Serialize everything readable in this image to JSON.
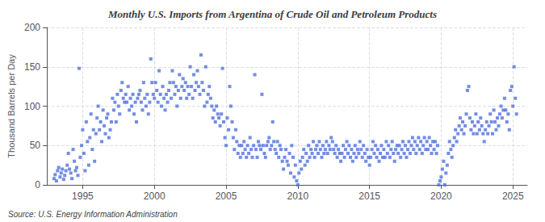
{
  "chart_data": {
    "type": "scatter",
    "title": "Monthly U.S. Imports from Argentina of Crude Oil and Petroleum Products",
    "ylabel": "Thousand Barrels per Day",
    "annotation": "Source: U.S. Energy Information Administration",
    "marker": "square",
    "grid": true,
    "xlim": [
      1992.5,
      2026.0
    ],
    "xticks": [
      1995,
      2000,
      2005,
      2010,
      2015,
      2020,
      2025
    ],
    "ylim": [
      0,
      200
    ],
    "yticks": [
      0,
      50,
      100,
      150,
      200
    ],
    "x": [
      1993.0,
      1993.08,
      1993.17,
      1993.25,
      1993.33,
      1993.42,
      1993.5,
      1993.58,
      1993.67,
      1993.75,
      1993.83,
      1993.92,
      1994.0,
      1994.08,
      1994.17,
      1994.25,
      1994.33,
      1994.42,
      1994.5,
      1994.58,
      1994.67,
      1994.75,
      1994.83,
      1994.92,
      1995.0,
      1995.08,
      1995.17,
      1995.25,
      1995.33,
      1995.42,
      1995.5,
      1995.58,
      1995.67,
      1995.75,
      1995.83,
      1995.92,
      1996.0,
      1996.08,
      1996.17,
      1996.25,
      1996.33,
      1996.42,
      1996.5,
      1996.58,
      1996.67,
      1996.75,
      1996.83,
      1996.92,
      1997.0,
      1997.08,
      1997.17,
      1997.25,
      1997.33,
      1997.42,
      1997.5,
      1997.58,
      1997.67,
      1997.75,
      1997.83,
      1997.92,
      1998.0,
      1998.08,
      1998.17,
      1998.25,
      1998.33,
      1998.42,
      1998.5,
      1998.58,
      1998.67,
      1998.75,
      1998.83,
      1998.92,
      1999.0,
      1999.08,
      1999.17,
      1999.25,
      1999.33,
      1999.42,
      1999.5,
      1999.58,
      1999.67,
      1999.75,
      1999.83,
      1999.92,
      2000.0,
      2000.08,
      2000.17,
      2000.25,
      2000.33,
      2000.42,
      2000.5,
      2000.58,
      2000.67,
      2000.75,
      2000.83,
      2000.92,
      2001.0,
      2001.08,
      2001.17,
      2001.25,
      2001.33,
      2001.42,
      2001.5,
      2001.58,
      2001.67,
      2001.75,
      2001.83,
      2001.92,
      2002.0,
      2002.08,
      2002.17,
      2002.25,
      2002.33,
      2002.42,
      2002.5,
      2002.58,
      2002.67,
      2002.75,
      2002.83,
      2002.92,
      2003.0,
      2003.08,
      2003.17,
      2003.25,
      2003.33,
      2003.42,
      2003.5,
      2003.58,
      2003.67,
      2003.75,
      2003.83,
      2003.92,
      2004.0,
      2004.08,
      2004.17,
      2004.25,
      2004.33,
      2004.42,
      2004.5,
      2004.58,
      2004.67,
      2004.75,
      2004.83,
      2004.92,
      2005.0,
      2005.08,
      2005.17,
      2005.25,
      2005.33,
      2005.42,
      2005.5,
      2005.58,
      2005.67,
      2005.75,
      2005.83,
      2005.92,
      2006.0,
      2006.08,
      2006.17,
      2006.25,
      2006.33,
      2006.42,
      2006.5,
      2006.58,
      2006.67,
      2006.75,
      2006.83,
      2006.92,
      2007.0,
      2007.08,
      2007.17,
      2007.25,
      2007.33,
      2007.42,
      2007.5,
      2007.58,
      2007.67,
      2007.75,
      2007.83,
      2007.92,
      2008.0,
      2008.08,
      2008.17,
      2008.25,
      2008.33,
      2008.42,
      2008.5,
      2008.58,
      2008.67,
      2008.75,
      2008.83,
      2008.92,
      2009.0,
      2009.08,
      2009.17,
      2009.25,
      2009.33,
      2009.42,
      2009.5,
      2009.58,
      2009.67,
      2009.75,
      2009.83,
      2009.92,
      2010.0,
      2010.08,
      2010.17,
      2010.25,
      2010.33,
      2010.42,
      2010.5,
      2010.58,
      2010.67,
      2010.75,
      2010.83,
      2010.92,
      2011.0,
      2011.08,
      2011.17,
      2011.25,
      2011.33,
      2011.42,
      2011.5,
      2011.58,
      2011.67,
      2011.75,
      2011.83,
      2011.92,
      2012.0,
      2012.08,
      2012.17,
      2012.25,
      2012.33,
      2012.42,
      2012.5,
      2012.58,
      2012.67,
      2012.75,
      2012.83,
      2012.92,
      2013.0,
      2013.08,
      2013.17,
      2013.25,
      2013.33,
      2013.42,
      2013.5,
      2013.58,
      2013.67,
      2013.75,
      2013.83,
      2013.92,
      2014.0,
      2014.08,
      2014.17,
      2014.25,
      2014.33,
      2014.42,
      2014.5,
      2014.58,
      2014.67,
      2014.75,
      2014.83,
      2014.92,
      2015.0,
      2015.08,
      2015.17,
      2015.25,
      2015.33,
      2015.42,
      2015.5,
      2015.58,
      2015.67,
      2015.75,
      2015.83,
      2015.92,
      2016.0,
      2016.08,
      2016.17,
      2016.25,
      2016.33,
      2016.42,
      2016.5,
      2016.58,
      2016.67,
      2016.75,
      2016.83,
      2016.92,
      2017.0,
      2017.08,
      2017.17,
      2017.25,
      2017.33,
      2017.42,
      2017.5,
      2017.58,
      2017.67,
      2017.75,
      2017.83,
      2017.92,
      2018.0,
      2018.08,
      2018.17,
      2018.25,
      2018.33,
      2018.42,
      2018.5,
      2018.58,
      2018.67,
      2018.75,
      2018.83,
      2018.92,
      2019.0,
      2019.08,
      2019.17,
      2019.25,
      2019.33,
      2019.42,
      2019.5,
      2019.58,
      2019.67,
      2019.75,
      2019.83,
      2019.92,
      2020.0,
      2020.08,
      2020.17,
      2020.25,
      2020.33,
      2020.42,
      2020.5,
      2020.58,
      2020.67,
      2020.75,
      2020.83,
      2020.92,
      2021.0,
      2021.08,
      2021.17,
      2021.25,
      2021.33,
      2021.42,
      2021.5,
      2021.58,
      2021.67,
      2021.75,
      2021.83,
      2021.92,
      2022.0,
      2022.08,
      2022.17,
      2022.25,
      2022.33,
      2022.42,
      2022.5,
      2022.58,
      2022.67,
      2022.75,
      2022.83,
      2022.92,
      2023.0,
      2023.08,
      2023.17,
      2023.25,
      2023.33,
      2023.42,
      2023.5,
      2023.58,
      2023.67,
      2023.75,
      2023.83,
      2023.92,
      2024.0,
      2024.08,
      2024.17,
      2024.25,
      2024.33,
      2024.42,
      2024.5,
      2024.58,
      2024.67,
      2024.75,
      2024.83,
      2024.92,
      2025.0,
      2025.08,
      2025.17,
      2025.25
    ],
    "values": [
      8,
      13,
      5,
      18,
      22,
      10,
      15,
      20,
      7,
      12,
      18,
      25,
      40,
      20,
      15,
      8,
      45,
      30,
      18,
      22,
      12,
      148,
      35,
      50,
      70,
      40,
      18,
      80,
      55,
      25,
      60,
      90,
      45,
      70,
      30,
      65,
      85,
      100,
      70,
      80,
      55,
      95,
      75,
      65,
      85,
      90,
      60,
      70,
      80,
      110,
      95,
      105,
      80,
      115,
      100,
      90,
      120,
      130,
      110,
      105,
      115,
      105,
      125,
      95,
      110,
      100,
      115,
      90,
      105,
      80,
      110,
      115,
      120,
      105,
      95,
      130,
      110,
      100,
      115,
      90,
      105,
      160,
      130,
      115,
      110,
      130,
      120,
      105,
      145,
      115,
      100,
      125,
      110,
      95,
      115,
      105,
      120,
      130,
      110,
      145,
      130,
      115,
      125,
      100,
      120,
      140,
      110,
      125,
      135,
      120,
      130,
      110,
      125,
      115,
      150,
      125,
      110,
      140,
      120,
      130,
      145,
      125,
      115,
      165,
      130,
      120,
      100,
      150,
      105,
      115,
      125,
      110,
      100,
      85,
      95,
      80,
      100,
      90,
      85,
      75,
      90,
      148,
      80,
      60,
      50,
      85,
      70,
      125,
      100,
      80,
      60,
      45,
      70,
      55,
      40,
      50,
      35,
      50,
      40,
      55,
      45,
      35,
      50,
      40,
      60,
      45,
      35,
      50,
      140,
      45,
      35,
      55,
      50,
      45,
      115,
      50,
      40,
      35,
      50,
      55,
      60,
      45,
      50,
      80,
      55,
      45,
      40,
      55,
      35,
      50,
      45,
      30,
      20,
      35,
      45,
      30,
      25,
      40,
      15,
      50,
      35,
      10,
      25,
      5,
      0,
      15,
      30,
      20,
      35,
      45,
      25,
      40,
      30,
      50,
      35,
      45,
      40,
      55,
      35,
      45,
      50,
      40,
      55,
      45,
      35,
      50,
      40,
      45,
      55,
      40,
      50,
      45,
      60,
      55,
      45,
      40,
      50,
      35,
      45,
      40,
      30,
      40,
      50,
      35,
      45,
      55,
      40,
      50,
      35,
      45,
      30,
      40,
      50,
      35,
      45,
      40,
      55,
      45,
      35,
      50,
      40,
      30,
      45,
      35,
      25,
      35,
      45,
      55,
      40,
      50,
      35,
      45,
      30,
      40,
      50,
      35,
      45,
      35,
      55,
      40,
      50,
      35,
      45,
      55,
      40,
      30,
      45,
      50,
      40,
      50,
      35,
      45,
      55,
      40,
      50,
      35,
      45,
      55,
      40,
      50,
      60,
      45,
      55,
      40,
      50,
      60,
      45,
      55,
      40,
      50,
      60,
      45,
      55,
      45,
      60,
      50,
      40,
      55,
      45,
      55,
      40,
      50,
      0,
      5,
      10,
      20,
      30,
      0,
      15,
      25,
      40,
      55,
      45,
      35,
      50,
      60,
      70,
      55,
      65,
      75,
      85,
      70,
      80,
      65,
      75,
      90,
      120,
      125,
      85,
      70,
      80,
      65,
      75,
      90,
      65,
      80,
      70,
      85,
      75,
      65,
      55,
      70,
      80,
      65,
      75,
      90,
      80,
      65,
      95,
      80,
      70,
      85,
      75,
      90,
      100,
      85,
      95,
      110,
      95,
      80,
      90,
      70,
      120,
      125,
      100,
      150,
      110,
      90
    ]
  }
}
